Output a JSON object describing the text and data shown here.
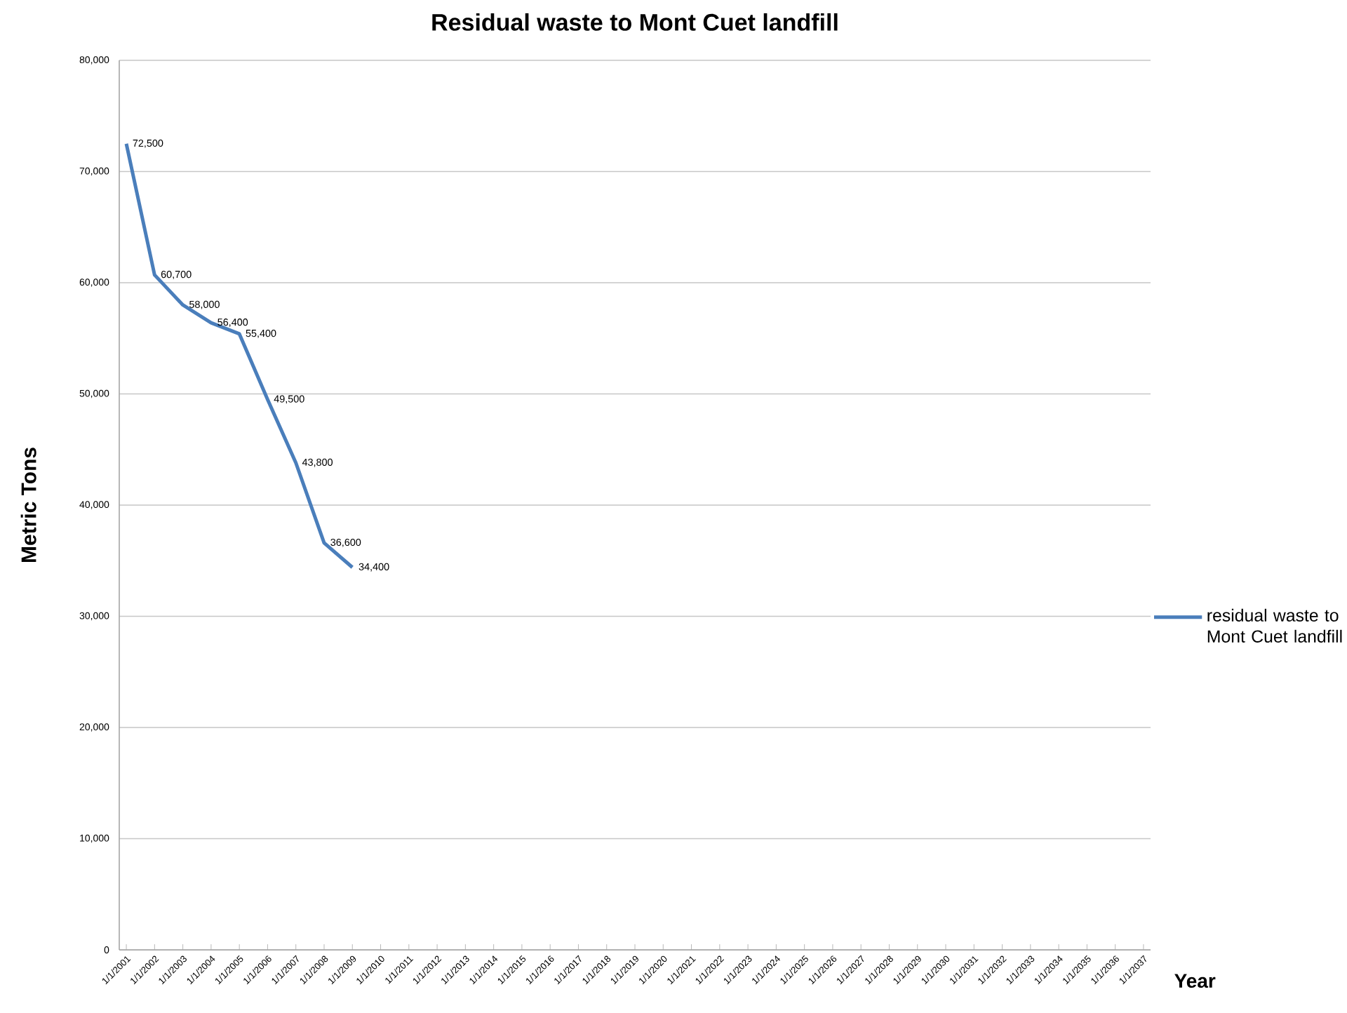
{
  "chart_data": {
    "type": "line",
    "title": "Residual waste to Mont Cuet landfill",
    "xlabel": "Year",
    "ylabel": "Metric Tons",
    "categories": [
      "1/1/2001",
      "1/1/2002",
      "1/1/2003",
      "1/1/2004",
      "1/1/2005",
      "1/1/2006",
      "1/1/2007",
      "1/1/2008",
      "1/1/2009",
      "1/1/2010",
      "1/1/2011",
      "1/1/2012",
      "1/1/2013",
      "1/1/2014",
      "1/1/2015",
      "1/1/2016",
      "1/1/2017",
      "1/1/2018",
      "1/1/2019",
      "1/1/2020",
      "1/1/2021",
      "1/1/2022",
      "1/1/2023",
      "1/1/2024",
      "1/1/2025",
      "1/1/2026",
      "1/1/2027",
      "1/1/2028",
      "1/1/2029",
      "1/1/2030",
      "1/1/2031",
      "1/1/2032",
      "1/1/2033",
      "1/1/2034",
      "1/1/2035",
      "1/1/2036",
      "1/1/2037"
    ],
    "series": [
      {
        "name": "residual waste to Mont Cuet landfill",
        "color": "#4a7ebb",
        "values": [
          72500,
          60700,
          58000,
          56400,
          55400,
          49500,
          43800,
          36600,
          34400,
          null,
          null,
          null,
          null,
          null,
          null,
          null,
          null,
          null,
          null,
          null,
          null,
          null,
          null,
          null,
          null,
          null,
          null,
          null,
          null,
          null,
          null,
          null,
          null,
          null,
          null,
          null,
          null
        ],
        "value_labels": [
          "72,500",
          "60,700",
          "58,000",
          "56,400",
          "55,400",
          "49,500",
          "43,800",
          "36,600",
          "34,400",
          null,
          null,
          null,
          null,
          null,
          null,
          null,
          null,
          null,
          null,
          null,
          null,
          null,
          null,
          null,
          null,
          null,
          null,
          null,
          null,
          null,
          null,
          null,
          null,
          null,
          null,
          null,
          null
        ]
      }
    ],
    "ylim": [
      0,
      80000
    ],
    "yticks": [
      {
        "value": 0,
        "label": "0"
      },
      {
        "value": 10000,
        "label": "10,000"
      },
      {
        "value": 20000,
        "label": "20,000"
      },
      {
        "value": 30000,
        "label": "30,000"
      },
      {
        "value": 40000,
        "label": "40,000"
      },
      {
        "value": 50000,
        "label": "50,000"
      },
      {
        "value": 60000,
        "label": "60,000"
      },
      {
        "value": 70000,
        "label": "70,000"
      },
      {
        "value": 80000,
        "label": "80,000"
      }
    ],
    "grid": "y",
    "legend": "right",
    "marker": "none",
    "line_style": "solid"
  }
}
